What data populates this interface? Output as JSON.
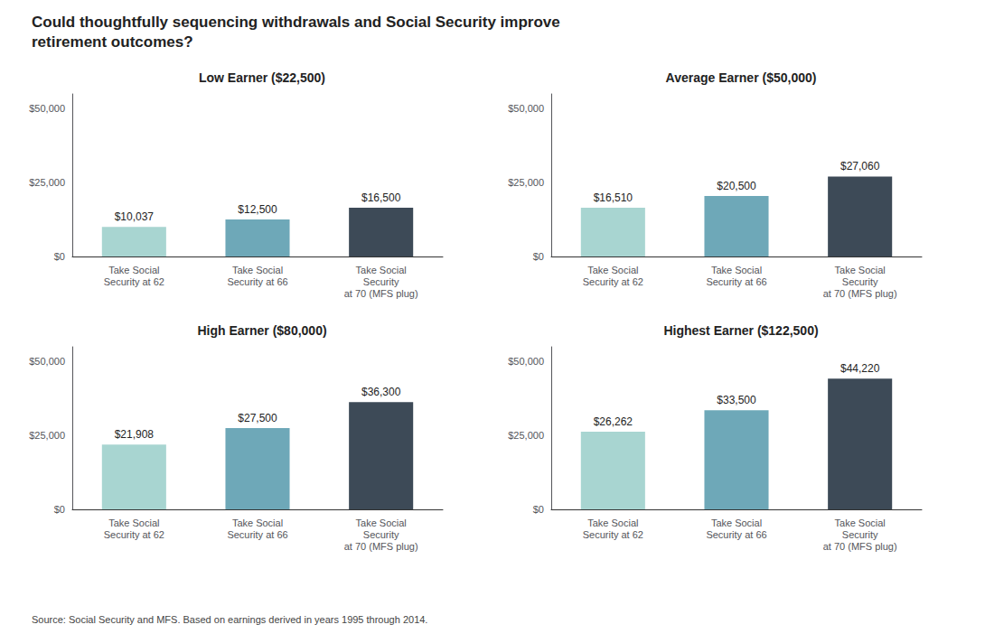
{
  "title": "Could thoughtfully sequencing withdrawals and Social Security improve\nretirement outcomes?",
  "annotations": [
    "Source: Social Security and MFS. Based on earnings derived in years 1995 through 2014."
  ],
  "chart_data": [
    {
      "type": "bar",
      "title": "Low Earner ($22,500)",
      "categories": [
        "Take Social\nSecurity at 62",
        "Take Social\nSecurity at 66",
        "Take Social\nSecurity\nat 70 (MFS plug)"
      ],
      "values": [
        10037,
        12500,
        16500
      ],
      "value_labels": [
        "$10,037",
        "$12,500",
        "$16,500"
      ],
      "colors": [
        "#a8d5d1",
        "#6ea8b8",
        "#3d4a57"
      ],
      "ylim": [
        0,
        55000
      ],
      "yticks": [
        {
          "value": 0,
          "label": "$0"
        },
        {
          "value": 25000,
          "label": "$25,000"
        },
        {
          "value": 50000,
          "label": "$50,000"
        }
      ],
      "grid": false,
      "data_labels": true
    },
    {
      "type": "bar",
      "title": "Average Earner ($50,000)",
      "categories": [
        "Take Social\nSecurity at 62",
        "Take Social\nSecurity at 66",
        "Take Social\nSecurity\nat 70 (MFS plug)"
      ],
      "values": [
        16510,
        20500,
        27060
      ],
      "value_labels": [
        "$16,510",
        "$20,500",
        "$27,060"
      ],
      "colors": [
        "#a8d5d1",
        "#6ea8b8",
        "#3d4a57"
      ],
      "ylim": [
        0,
        55000
      ],
      "yticks": [
        {
          "value": 0,
          "label": "$0"
        },
        {
          "value": 25000,
          "label": "$25,000"
        },
        {
          "value": 50000,
          "label": "$50,000"
        }
      ],
      "grid": false,
      "data_labels": true
    },
    {
      "type": "bar",
      "title": "High Earner ($80,000)",
      "categories": [
        "Take Social\nSecurity at 62",
        "Take Social\nSecurity at 66",
        "Take Social\nSecurity\nat 70 (MFS plug)"
      ],
      "values": [
        21908,
        27500,
        36300
      ],
      "value_labels": [
        "$21,908",
        "$27,500",
        "$36,300"
      ],
      "colors": [
        "#a8d5d1",
        "#6ea8b8",
        "#3d4a57"
      ],
      "ylim": [
        0,
        55000
      ],
      "yticks": [
        {
          "value": 0,
          "label": "$0"
        },
        {
          "value": 25000,
          "label": "$25,000"
        },
        {
          "value": 50000,
          "label": "$50,000"
        }
      ],
      "grid": false,
      "data_labels": true
    },
    {
      "type": "bar",
      "title": "Highest Earner ($122,500)",
      "categories": [
        "Take Social\nSecurity at 62",
        "Take Social\nSecurity at 66",
        "Take Social\nSecurity\nat 70 (MFS plug)"
      ],
      "values": [
        26262,
        33500,
        44220
      ],
      "value_labels": [
        "$26,262",
        "$33,500",
        "$44,220"
      ],
      "colors": [
        "#a8d5d1",
        "#6ea8b8",
        "#3d4a57"
      ],
      "ylim": [
        0,
        55000
      ],
      "yticks": [
        {
          "value": 0,
          "label": "$0"
        },
        {
          "value": 25000,
          "label": "$25,000"
        },
        {
          "value": 50000,
          "label": "$50,000"
        }
      ],
      "grid": false,
      "data_labels": true
    }
  ]
}
